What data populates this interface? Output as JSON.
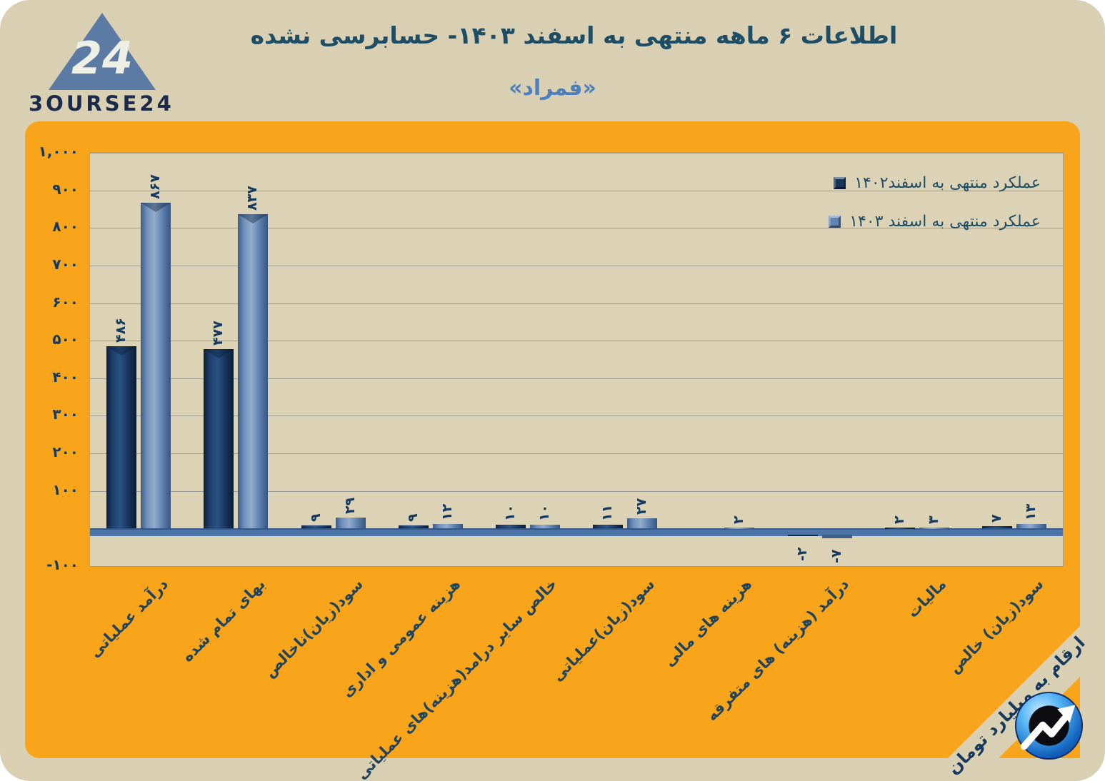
{
  "page": {
    "title": "اطلاعات ۶ ماهه منتهی به اسفند  ۱۴۰۳- حسابرسی نشده",
    "subtitle": "«فمراد»",
    "unit_note": "ارقام به میلیارد تومان"
  },
  "logo": {
    "mark": "24",
    "brand": "3OURSE24"
  },
  "colors": {
    "accent_orange": "#f9a51c",
    "background_beige": "#d9cfb2",
    "plot_beige": "#dcd2b6",
    "bar_1402": "#17365c",
    "bar_1403": "#5f83b3",
    "axis_line": "#4d74a6",
    "title_text": "#1d4e66",
    "subtitle_text": "#4b80bd",
    "value_text": "#16395f"
  },
  "chart_data": {
    "type": "bar",
    "title": "اطلاعات ۶ ماهه منتهی به اسفند  ۱۴۰۳- حسابرسی نشده",
    "subtitle": "«فمراد»",
    "unit": "ارقام به میلیارد تومان",
    "grid": true,
    "legend_position": "top-right",
    "categories": [
      "درآمد عملیاتی",
      "بهای تمام شده",
      "سود(زیان)ناخالص",
      "هزینه عمومی و اداری",
      "خالص سایر درامد(هزینه)های عملیاتی",
      "سود(زیان)عملیاتی",
      "هزینه های مالی",
      "درآمد (هزینه) های متفرقه",
      "مالیات",
      "سود(زیان) خالص"
    ],
    "series": [
      {
        "name": "عملکرد منتهی به اسفند۱۴۰۲",
        "color": "#17365c",
        "values": [
          486,
          477,
          9,
          9,
          10,
          11,
          null,
          -2,
          2,
          7
        ],
        "labels": [
          "۴۸۶",
          "۴۷۷",
          "۹",
          "۹",
          "۱۰",
          "۱۱",
          "",
          "-۲",
          "۲",
          "۷"
        ]
      },
      {
        "name": "عملکرد منتهی به اسفند ۱۴۰۳",
        "color": "#5f83b3",
        "values": [
          867,
          837,
          29,
          12,
          10,
          27,
          2,
          -7,
          3,
          13
        ],
        "labels": [
          "۸۶۷",
          "۸۳۷",
          "۲۹",
          "۱۲",
          "۱۰",
          "۲۷",
          "۲",
          "-۷",
          "۳",
          "۱۳"
        ]
      }
    ],
    "y_axis": {
      "min": -100,
      "max": 1000,
      "step": 100,
      "tick_labels": [
        {
          "value": 1000,
          "label": "۱,۰۰۰"
        },
        {
          "value": 900,
          "label": "۹۰۰"
        },
        {
          "value": 800,
          "label": "۸۰۰"
        },
        {
          "value": 700,
          "label": "۷۰۰"
        },
        {
          "value": 600,
          "label": "۶۰۰"
        },
        {
          "value": 500,
          "label": "۵۰۰"
        },
        {
          "value": 400,
          "label": "۴۰۰"
        },
        {
          "value": 300,
          "label": "۳۰۰"
        },
        {
          "value": 200,
          "label": "۲۰۰"
        },
        {
          "value": 100,
          "label": "۱۰۰"
        },
        {
          "value": -100,
          "label": "-۱۰۰"
        }
      ]
    }
  }
}
